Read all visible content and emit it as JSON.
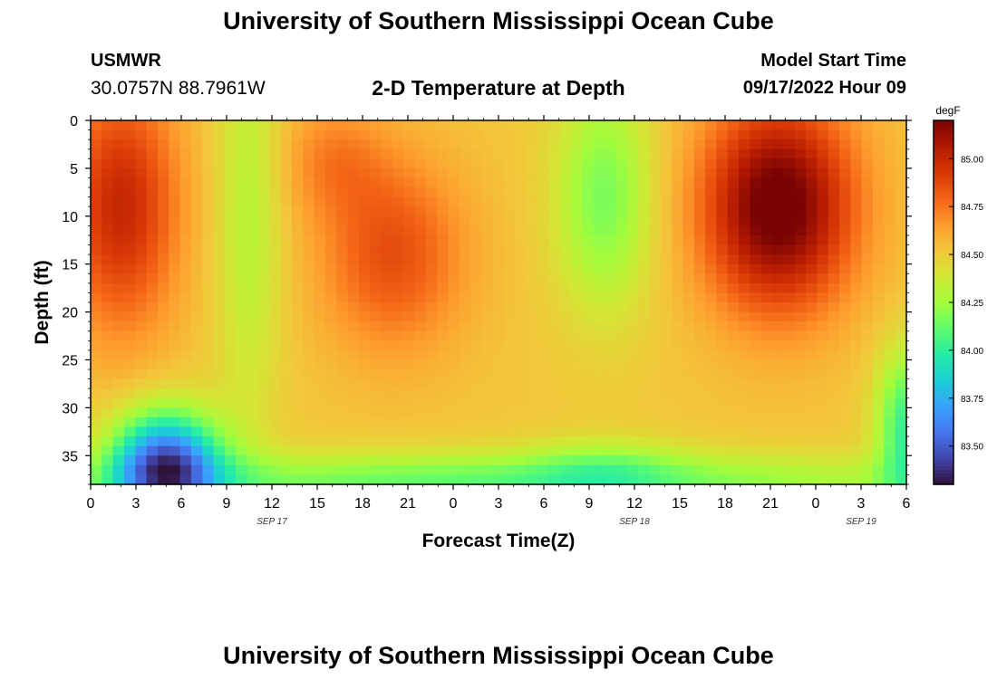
{
  "header": {
    "title": "University of Southern Mississippi Ocean Cube",
    "station": "USMWR",
    "coordinates": "30.0757N  88.7961W",
    "subtitle": "2-D Temperature at Depth",
    "model_start_label": "Model Start Time",
    "model_start_value": "09/17/2022 Hour 09"
  },
  "footer": {
    "title": "University of Southern Mississippi Ocean Cube"
  },
  "colors": {
    "background": "#ffffff",
    "axis": "#000000"
  },
  "chart_data": {
    "type": "heatmap",
    "title": "2-D Temperature at Depth",
    "xlabel": "Forecast Time(Z)",
    "ylabel": "Depth (ft)",
    "colorbar_label": "degF",
    "x_tick_labels": [
      "0",
      "3",
      "6",
      "9",
      "12",
      "15",
      "18",
      "21",
      "0",
      "3",
      "6",
      "9",
      "12",
      "15",
      "18",
      "21",
      "0",
      "3",
      "6"
    ],
    "x_hours_range": [
      0,
      54
    ],
    "date_labels": [
      {
        "text": "SEP 17",
        "hour": 12
      },
      {
        "text": "SEP 18",
        "hour": 36
      },
      {
        "text": "SEP 19",
        "hour": 51
      }
    ],
    "y_tick_labels": [
      "0",
      "5",
      "10",
      "15",
      "20",
      "25",
      "30",
      "35"
    ],
    "ylim": [
      0,
      38
    ],
    "colorbar_ticks": [
      "83.50",
      "83.75",
      "84.00",
      "84.25",
      "84.50",
      "84.75",
      "85.00"
    ],
    "colorbar_range": [
      83.3,
      85.2
    ],
    "colormap": [
      "#30123b",
      "#4145ab",
      "#4675ed",
      "#39a2fc",
      "#1bcfd4",
      "#24eca6",
      "#61fc6c",
      "#a4fc3b",
      "#d1e834",
      "#f3c63a",
      "#fe9b2d",
      "#f36315",
      "#d93806",
      "#b11901",
      "#7a0403"
    ],
    "grid": {
      "cols": 73,
      "rows": 38
    },
    "features": [
      {
        "name": "warm-upper-left",
        "time": [
          0,
          8
        ],
        "depth": [
          0,
          22
        ],
        "temp": 84.95
      },
      {
        "name": "cool-band-sep17",
        "time": [
          9,
          12
        ],
        "depth": [
          0,
          30
        ],
        "temp": 84.35
      },
      {
        "name": "warm-core-midday",
        "time": [
          17,
          24
        ],
        "depth": [
          8,
          24
        ],
        "temp": 84.82
      },
      {
        "name": "cool-band-sep18",
        "time": [
          30,
          38
        ],
        "depth": [
          0,
          20
        ],
        "temp": 84.2
      },
      {
        "name": "hot-core-sep18-evening",
        "time": [
          42,
          50
        ],
        "depth": [
          2,
          20
        ],
        "temp": 85.15
      },
      {
        "name": "cold-bottom-left",
        "time": [
          1,
          9
        ],
        "depth": [
          26,
          38
        ],
        "temp": 83.35
      },
      {
        "name": "cool-bottom-layer",
        "time": [
          0,
          54
        ],
        "depth": [
          34,
          38
        ],
        "temp": 83.95
      },
      {
        "name": "cool-right-edge",
        "time": [
          52,
          54
        ],
        "depth": [
          20,
          38
        ],
        "temp": 84.1
      }
    ]
  }
}
